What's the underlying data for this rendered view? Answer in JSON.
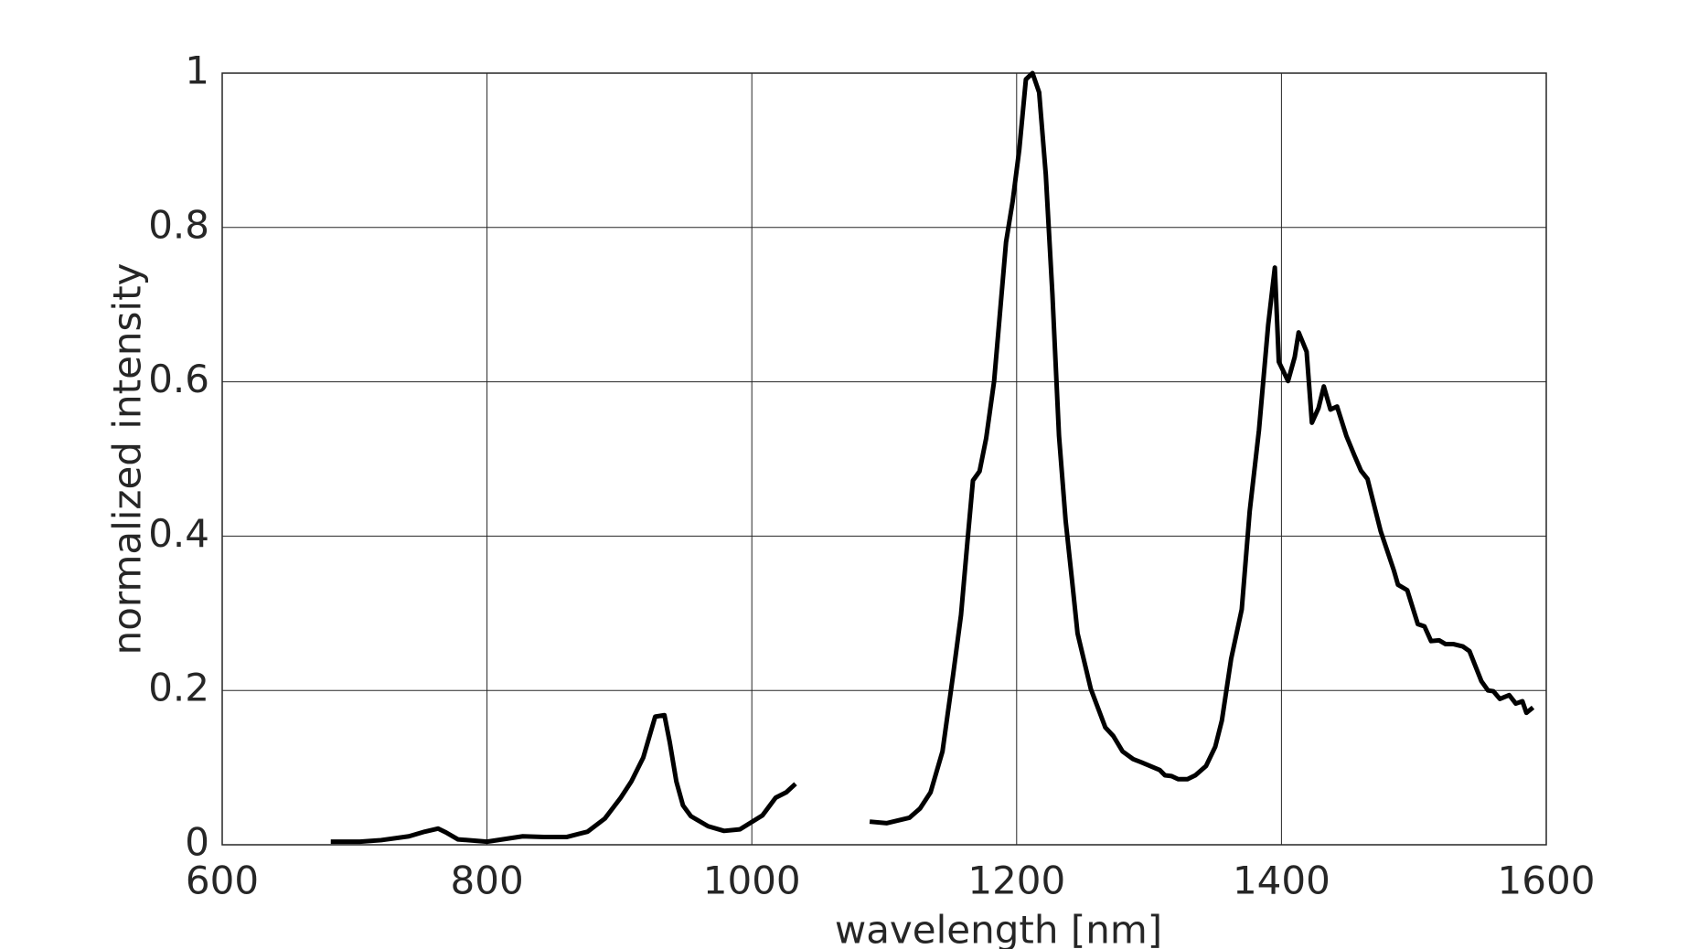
{
  "chart_data": {
    "type": "line",
    "xlabel": "wavelength [nm]",
    "ylabel": "normalized intensity",
    "xlim": [
      600,
      1600
    ],
    "xticks": [
      600,
      800,
      1000,
      1200,
      1400,
      1600
    ],
    "ylim": [
      0,
      1
    ],
    "yticks": [
      0,
      0.2,
      0.4,
      0.6,
      0.8,
      1
    ],
    "grid": true,
    "x": [
      682,
      704,
      720,
      741,
      753,
      763,
      769,
      778,
      800,
      827,
      843,
      860,
      876,
      889,
      901,
      909,
      918,
      927,
      934,
      938,
      943,
      948,
      954,
      967,
      979,
      991,
      1008,
      1018,
      1026,
      1033,
      1060,
      1089,
      1102,
      1119,
      1127,
      1135,
      1144,
      1152,
      1158,
      1163,
      1167,
      1172,
      1177,
      1183,
      1192,
      1197,
      1202,
      1207,
      1212,
      1217,
      1222,
      1227,
      1232,
      1237,
      1242,
      1246,
      1256,
      1267,
      1273,
      1280,
      1288,
      1294,
      1301,
      1308,
      1312,
      1317,
      1322,
      1329,
      1335,
      1343,
      1350,
      1355,
      1362,
      1370,
      1376,
      1383,
      1390,
      1395,
      1398,
      1405,
      1410,
      1413,
      1419,
      1423,
      1428,
      1432,
      1437,
      1442,
      1449,
      1455,
      1460,
      1465,
      1475,
      1485,
      1488,
      1495,
      1503,
      1508,
      1513,
      1519,
      1524,
      1530,
      1537,
      1542,
      1551,
      1556,
      1560,
      1565,
      1572,
      1577,
      1582,
      1585,
      1590
    ],
    "series": [
      {
        "color": "#000000",
        "values": [
          0.004,
          0.004,
          0.006,
          0.011,
          0.017,
          0.021,
          0.016,
          0.007,
          0.004,
          0.011,
          0.01,
          0.01,
          0.017,
          0.034,
          0.061,
          0.082,
          0.113,
          0.166,
          0.168,
          0.133,
          0.082,
          0.051,
          0.037,
          0.024,
          0.018,
          0.02,
          0.038,
          0.061,
          0.068,
          0.079,
          null,
          0.03,
          0.028,
          0.035,
          0.047,
          0.068,
          0.121,
          0.22,
          0.298,
          0.396,
          0.472,
          0.484,
          0.527,
          0.601,
          0.781,
          0.834,
          0.901,
          0.992,
          1.0,
          0.975,
          0.869,
          0.714,
          0.53,
          0.42,
          0.34,
          0.274,
          0.202,
          0.152,
          0.141,
          0.121,
          0.111,
          0.107,
          0.102,
          0.097,
          0.09,
          0.089,
          0.085,
          0.085,
          0.09,
          0.102,
          0.127,
          0.161,
          0.241,
          0.305,
          0.432,
          0.537,
          0.674,
          0.748,
          0.626,
          0.601,
          0.632,
          0.664,
          0.639,
          0.547,
          0.566,
          0.594,
          0.564,
          0.568,
          0.53,
          0.505,
          0.485,
          0.474,
          0.406,
          0.355,
          0.337,
          0.33,
          0.286,
          0.283,
          0.264,
          0.265,
          0.26,
          0.26,
          0.257,
          0.251,
          0.212,
          0.2,
          0.199,
          0.189,
          0.194,
          0.183,
          0.186,
          0.171,
          0.178
        ]
      }
    ]
  }
}
